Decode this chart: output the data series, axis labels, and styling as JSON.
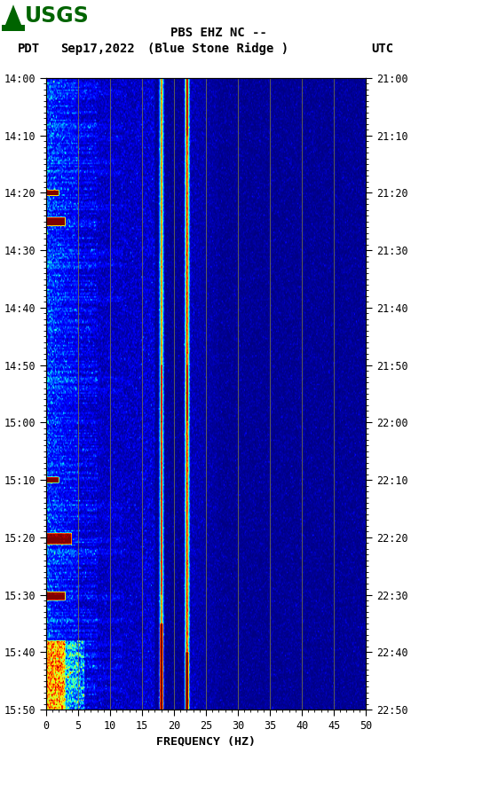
{
  "title_line1": "PBS EHZ NC --",
  "title_line2": "(Blue Stone Ridge )",
  "left_label": "PDT",
  "date_label": "Sep17,2022",
  "right_label": "UTC",
  "xlabel": "FREQUENCY (HZ)",
  "freq_min": 0,
  "freq_max": 50,
  "time_ticks_pdt": [
    "14:00",
    "14:10",
    "14:20",
    "14:30",
    "14:40",
    "14:50",
    "15:00",
    "15:10",
    "15:20",
    "15:30",
    "15:40",
    "15:50"
  ],
  "time_ticks_utc": [
    "21:00",
    "21:10",
    "21:20",
    "21:30",
    "21:40",
    "21:50",
    "22:00",
    "22:10",
    "22:20",
    "22:30",
    "22:40",
    "22:50"
  ],
  "freq_ticks": [
    0,
    5,
    10,
    15,
    20,
    25,
    30,
    35,
    40,
    45,
    50
  ],
  "colormap": "jet",
  "vertical_lines_freq": [
    5,
    10,
    15,
    20,
    25,
    30,
    35,
    40,
    45
  ],
  "vertical_line_color": "#808040",
  "fig_bg": "#ffffff",
  "n_time": 440,
  "n_freq": 500,
  "noise_seed": 42,
  "logo_color": "#006400",
  "peak18_hz": 18,
  "peak22_hz": 22
}
